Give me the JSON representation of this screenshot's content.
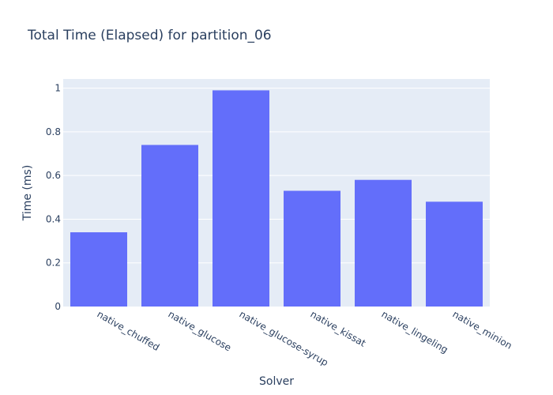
{
  "chart_data": {
    "type": "bar",
    "title": "Total Time (Elapsed) for partition_06",
    "xlabel": "Solver",
    "ylabel": "Time (ms)",
    "categories": [
      "native_chuffed",
      "native_glucose",
      "native_glucose-syrup",
      "native_kissat",
      "native_lingeling",
      "native_minion"
    ],
    "values": [
      0.34,
      0.74,
      0.99,
      0.53,
      0.58,
      0.48
    ],
    "ylim": [
      0,
      1.042
    ],
    "yticks": [
      0,
      0.2,
      0.4,
      0.6,
      0.8,
      1
    ],
    "ytick_labels": [
      "0",
      "0.2",
      "0.4",
      "0.6",
      "0.8",
      "1"
    ],
    "grid": true,
    "colors": {
      "bar": "#636efa",
      "plot_bg": "#e5ecf6",
      "grid": "#ffffff",
      "text": "#2a3f5f"
    }
  }
}
